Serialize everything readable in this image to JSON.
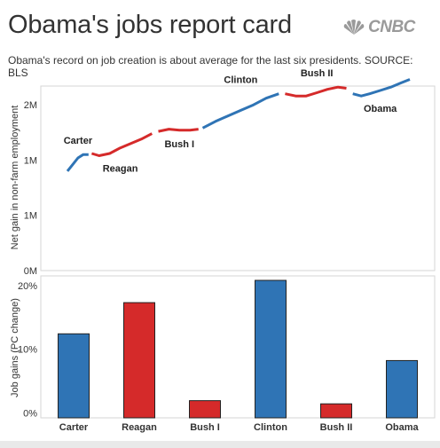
{
  "header": {
    "title": "Obama's jobs report card",
    "subtitle": "Obama's record on job creation is about average for the last six presidents. SOURCE: BLS",
    "logo_text": "CNBC"
  },
  "chart_data": [
    {
      "type": "line",
      "title": "",
      "xlabel": "",
      "ylabel": "Net gain in non-farm employment",
      "y_ticks": [
        "0M",
        "1M",
        "1M",
        "2M"
      ],
      "y_tick_values": [
        0,
        0.5,
        1.0,
        1.5
      ],
      "ylim": [
        0,
        1.67
      ],
      "grid": false,
      "legend": "none",
      "series": [
        {
          "name": "Carter",
          "party_color": "#2f74b5",
          "label_position": "above",
          "x": [
            0,
            0.25,
            0.5,
            0.75,
            1.0
          ],
          "y": [
            0.9,
            0.96,
            1.02,
            1.05,
            1.05
          ]
        },
        {
          "name": "Reagan",
          "party_color": "#d52a2a",
          "label_position": "below",
          "x": [
            1.15,
            1.5,
            2.0,
            2.5,
            3.0,
            3.5,
            4.0
          ],
          "y": [
            1.06,
            1.04,
            1.06,
            1.11,
            1.15,
            1.19,
            1.24
          ]
        },
        {
          "name": "Bush I",
          "party_color": "#d52a2a",
          "label_position": "below",
          "x": [
            4.3,
            4.8,
            5.3,
            5.8,
            6.2
          ],
          "y": [
            1.26,
            1.28,
            1.27,
            1.27,
            1.28
          ]
        },
        {
          "name": "Clinton",
          "party_color": "#2f74b5",
          "label_position": "above",
          "x": [
            6.4,
            7.0,
            7.6,
            8.2,
            8.8,
            9.4,
            10.0
          ],
          "y": [
            1.29,
            1.35,
            1.4,
            1.45,
            1.5,
            1.56,
            1.6
          ]
        },
        {
          "name": "Bush II",
          "party_color": "#d52a2a",
          "label_position": "above",
          "x": [
            10.3,
            10.8,
            11.3,
            11.8,
            12.3,
            12.8,
            13.2
          ],
          "y": [
            1.6,
            1.58,
            1.58,
            1.61,
            1.64,
            1.66,
            1.65
          ]
        },
        {
          "name": "Obama",
          "party_color": "#2f74b5",
          "label_position": "below",
          "x": [
            13.5,
            13.9,
            14.3,
            14.8,
            15.3,
            15.8,
            16.2
          ],
          "y": [
            1.6,
            1.58,
            1.6,
            1.63,
            1.66,
            1.7,
            1.73
          ]
        }
      ]
    },
    {
      "type": "bar",
      "title": "",
      "xlabel": "",
      "ylabel": "Job gains (PC change)",
      "categories": [
        "Carter",
        "Reagan",
        "Bush I",
        "Clinton",
        "Bush II",
        "Obama"
      ],
      "values": [
        12.4,
        17.3,
        1.9,
        20.8,
        1.4,
        8.2
      ],
      "party_colors": [
        "#2f74b5",
        "#d52a2a",
        "#d52a2a",
        "#2f74b5",
        "#d52a2a",
        "#2f74b5"
      ],
      "y_ticks": [
        "0%",
        "10%",
        "20%"
      ],
      "y_tick_values": [
        0,
        10,
        20
      ],
      "ylim": [
        -0.8,
        21.5
      ],
      "grid": false,
      "legend": "none"
    }
  ]
}
